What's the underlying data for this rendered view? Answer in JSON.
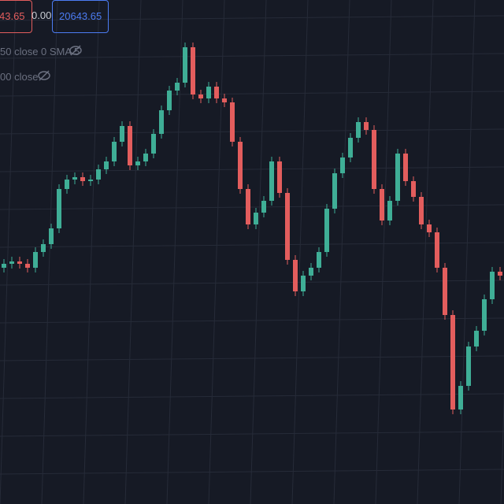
{
  "header": {
    "price_box": "43.65",
    "change": "0.00",
    "last_box": "20643.65",
    "indicator_1": "50 close 0 SMA 5",
    "indicator_2": "00 close"
  },
  "chart_data": {
    "type": "candlestick",
    "up_color": "#3fae96",
    "down_color": "#e35d5d",
    "ylim": [
      0,
      640
    ],
    "open": [
      300,
      305,
      308,
      305,
      300,
      320,
      330,
      350,
      400,
      412,
      415,
      410,
      412,
      425,
      435,
      460,
      480,
      430,
      435,
      445,
      470,
      500,
      525,
      535,
      580,
      520,
      515,
      530,
      515,
      510,
      460,
      400,
      355,
      370,
      385,
      435,
      395,
      310,
      270,
      290,
      300,
      320,
      375,
      420,
      440,
      465,
      485,
      475,
      400,
      360,
      385,
      445,
      410,
      390,
      355,
      345,
      300,
      240,
      120,
      150,
      200,
      220,
      260,
      295
    ],
    "high": [
      311,
      314,
      314,
      311,
      326,
      336,
      356,
      406,
      418,
      421,
      421,
      418,
      431,
      441,
      466,
      486,
      486,
      441,
      451,
      476,
      506,
      531,
      541,
      586,
      586,
      526,
      536,
      536,
      521,
      516,
      466,
      406,
      376,
      391,
      441,
      441,
      401,
      316,
      296,
      306,
      326,
      381,
      426,
      446,
      471,
      491,
      491,
      481,
      406,
      391,
      451,
      451,
      416,
      396,
      361,
      351,
      306,
      246,
      156,
      206,
      226,
      266,
      301,
      301
    ],
    "low": [
      294,
      299,
      299,
      294,
      294,
      314,
      324,
      344,
      394,
      406,
      404,
      404,
      406,
      419,
      429,
      454,
      424,
      424,
      429,
      439,
      464,
      494,
      519,
      529,
      514,
      509,
      509,
      509,
      504,
      454,
      394,
      349,
      349,
      364,
      379,
      389,
      304,
      264,
      264,
      284,
      294,
      314,
      369,
      414,
      434,
      459,
      469,
      394,
      354,
      354,
      379,
      404,
      384,
      349,
      339,
      294,
      234,
      114,
      114,
      144,
      194,
      214,
      254,
      284
    ],
    "close": [
      305,
      308,
      305,
      300,
      320,
      330,
      350,
      400,
      412,
      415,
      410,
      412,
      425,
      435,
      460,
      480,
      430,
      435,
      445,
      470,
      500,
      525,
      535,
      580,
      520,
      515,
      530,
      515,
      510,
      460,
      400,
      355,
      370,
      385,
      435,
      395,
      310,
      270,
      290,
      300,
      320,
      375,
      420,
      440,
      465,
      485,
      475,
      400,
      360,
      385,
      445,
      410,
      390,
      355,
      345,
      300,
      240,
      120,
      150,
      200,
      220,
      260,
      295,
      290
    ]
  }
}
